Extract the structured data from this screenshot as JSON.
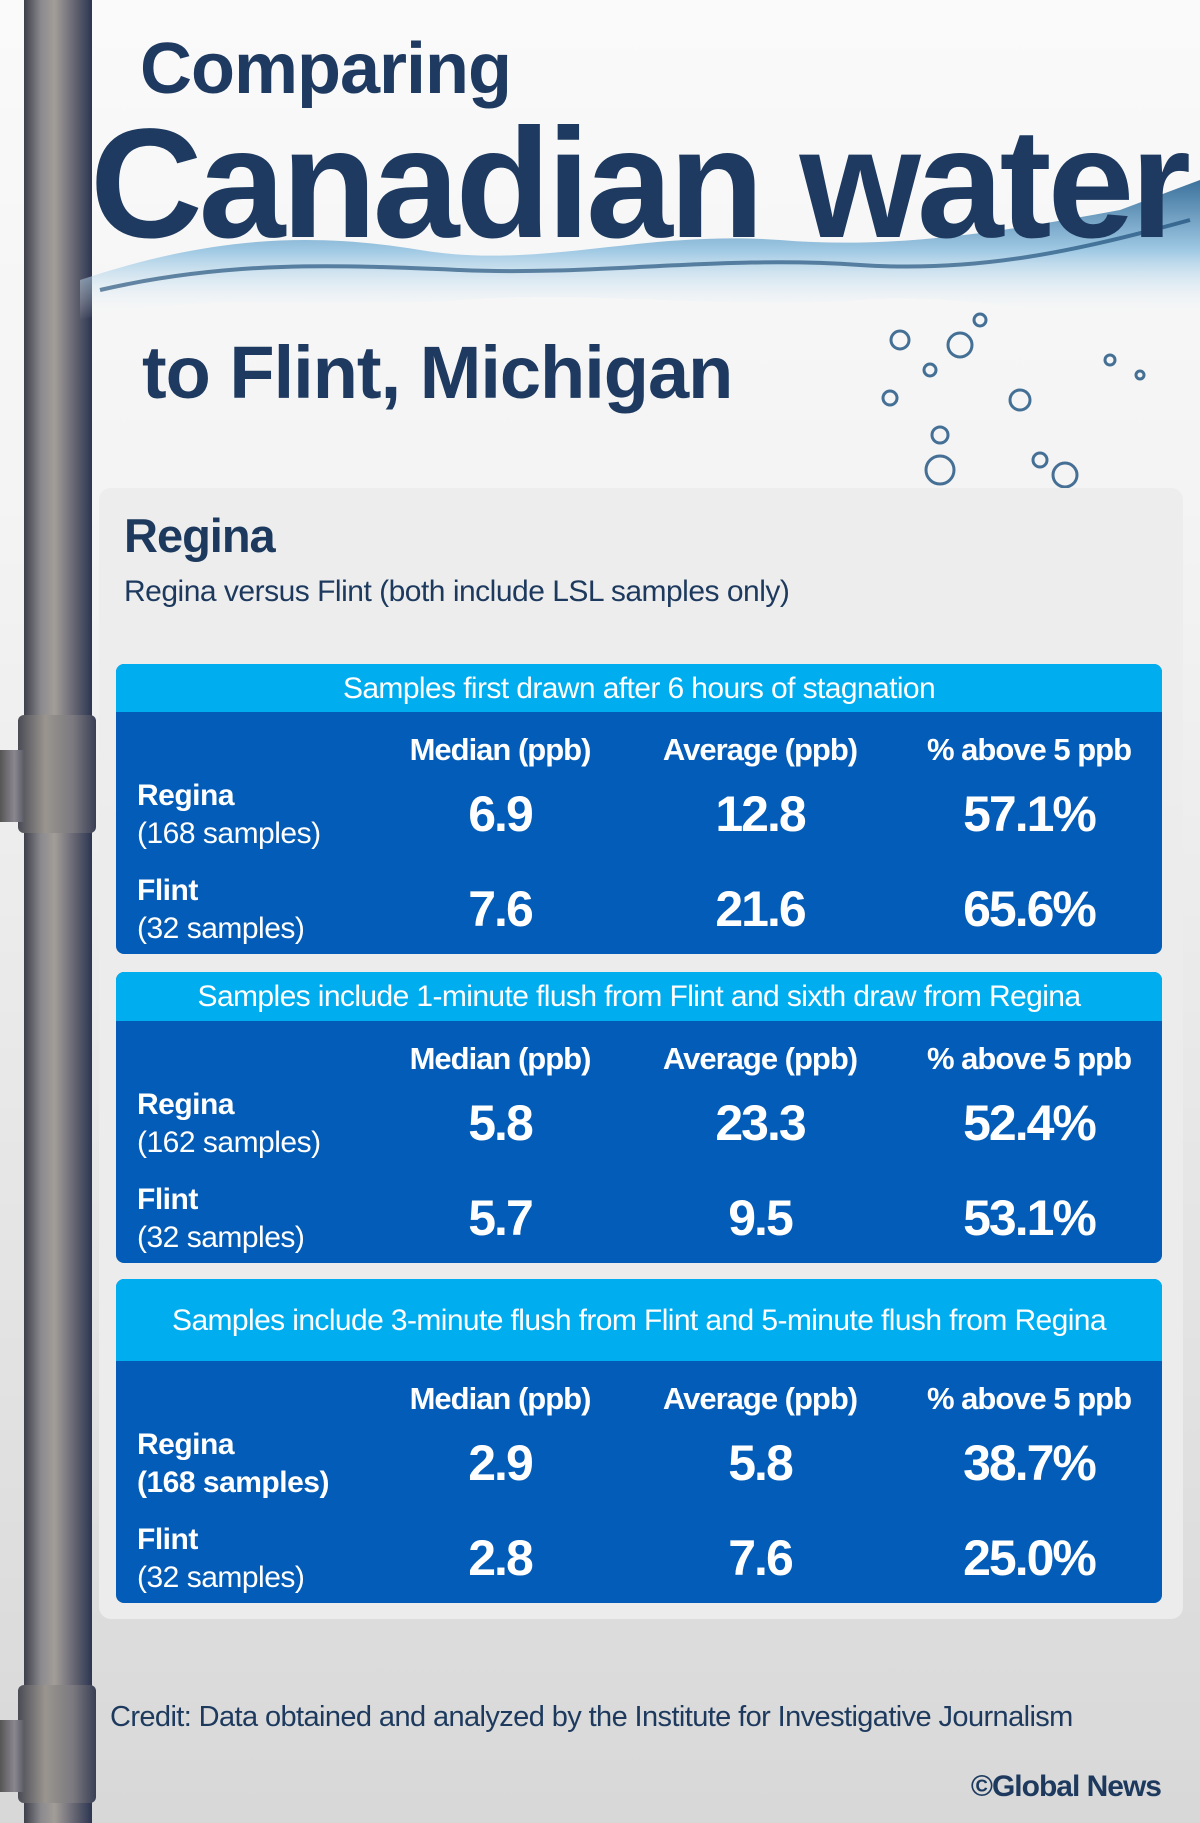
{
  "title": {
    "line1": "Comparing",
    "line2": "Canadian water",
    "line3": "to Flint, Michigan"
  },
  "section": {
    "city": "Regina",
    "subtitle": "Regina versus Flint (both include LSL samples only)"
  },
  "columns": [
    "Median (ppb)",
    "Average (ppb)",
    "% above 5 ppb"
  ],
  "tables": [
    {
      "heading": "Samples first drawn after 6 hours of stagnation",
      "rows": [
        {
          "name": "Regina",
          "samples": "(168 samples)",
          "median": "6.9",
          "average": "12.8",
          "pct": "57.1%"
        },
        {
          "name": "Flint",
          "samples": "(32 samples)",
          "median": "7.6",
          "average": "21.6",
          "pct": "65.6%"
        }
      ]
    },
    {
      "heading": "Samples include 1-minute flush from Flint and sixth draw from Regina",
      "rows": [
        {
          "name": "Regina",
          "samples": "(162 samples)",
          "median": "5.8",
          "average": "23.3",
          "pct": "52.4%"
        },
        {
          "name": "Flint",
          "samples": "(32 samples)",
          "median": "5.7",
          "average": "9.5",
          "pct": "53.1%"
        }
      ]
    },
    {
      "heading": "Samples include 3-minute flush from Flint and 5-minute flush from Regina",
      "rows": [
        {
          "name": "Regina",
          "samples": "(168 samples)",
          "median": "2.9",
          "average": "5.8",
          "pct": "38.7%"
        },
        {
          "name": "Flint",
          "samples": "(32 samples)",
          "median": "2.8",
          "average": "7.6",
          "pct": "25.0%"
        }
      ]
    }
  ],
  "credit": "Credit: Data obtained and analyzed by the Institute for Investigative Journalism",
  "copyright": "©Global News",
  "colors": {
    "title": "#1e3a60",
    "table_body": "#035cb7",
    "table_header": "#00aeef",
    "panel": "#ececec"
  }
}
